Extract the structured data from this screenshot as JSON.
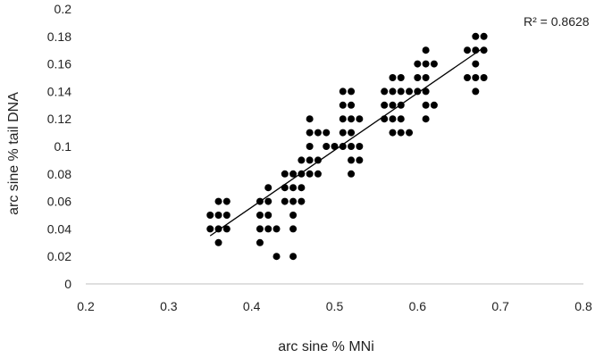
{
  "chart_data": {
    "type": "scatter",
    "xlabel": "arc sine % MNi",
    "ylabel": "arc sine % tail DNA",
    "xlim": [
      0.2,
      0.8
    ],
    "ylim": [
      0,
      0.2
    ],
    "x_ticks": [
      "0.2",
      "0.3",
      "0.4",
      "0.5",
      "0.6",
      "0.7",
      "0.8"
    ],
    "y_ticks": [
      "0",
      "0.02",
      "0.04",
      "0.06",
      "0.08",
      "0.1",
      "0.12",
      "0.14",
      "0.16",
      "0.18",
      "0.2"
    ],
    "grid": false,
    "legend": "none",
    "annotation": "R² = 0.8628",
    "marker_color": "#000000",
    "points": [
      [
        0.35,
        0.05
      ],
      [
        0.35,
        0.04
      ],
      [
        0.36,
        0.06
      ],
      [
        0.36,
        0.05
      ],
      [
        0.36,
        0.04
      ],
      [
        0.36,
        0.03
      ],
      [
        0.37,
        0.06
      ],
      [
        0.37,
        0.05
      ],
      [
        0.37,
        0.04
      ],
      [
        0.41,
        0.06
      ],
      [
        0.41,
        0.05
      ],
      [
        0.41,
        0.04
      ],
      [
        0.41,
        0.03
      ],
      [
        0.42,
        0.07
      ],
      [
        0.42,
        0.06
      ],
      [
        0.42,
        0.05
      ],
      [
        0.42,
        0.04
      ],
      [
        0.43,
        0.04
      ],
      [
        0.43,
        0.02
      ],
      [
        0.44,
        0.08
      ],
      [
        0.44,
        0.07
      ],
      [
        0.44,
        0.06
      ],
      [
        0.45,
        0.08
      ],
      [
        0.45,
        0.07
      ],
      [
        0.45,
        0.06
      ],
      [
        0.45,
        0.05
      ],
      [
        0.45,
        0.04
      ],
      [
        0.45,
        0.02
      ],
      [
        0.46,
        0.09
      ],
      [
        0.46,
        0.08
      ],
      [
        0.46,
        0.07
      ],
      [
        0.46,
        0.06
      ],
      [
        0.47,
        0.12
      ],
      [
        0.47,
        0.11
      ],
      [
        0.47,
        0.1
      ],
      [
        0.47,
        0.09
      ],
      [
        0.47,
        0.08
      ],
      [
        0.48,
        0.11
      ],
      [
        0.48,
        0.09
      ],
      [
        0.48,
        0.08
      ],
      [
        0.49,
        0.11
      ],
      [
        0.49,
        0.1
      ],
      [
        0.5,
        0.1
      ],
      [
        0.51,
        0.14
      ],
      [
        0.51,
        0.13
      ],
      [
        0.51,
        0.12
      ],
      [
        0.51,
        0.11
      ],
      [
        0.51,
        0.1
      ],
      [
        0.52,
        0.14
      ],
      [
        0.52,
        0.13
      ],
      [
        0.52,
        0.12
      ],
      [
        0.52,
        0.11
      ],
      [
        0.52,
        0.1
      ],
      [
        0.52,
        0.09
      ],
      [
        0.52,
        0.08
      ],
      [
        0.53,
        0.12
      ],
      [
        0.53,
        0.1
      ],
      [
        0.53,
        0.09
      ],
      [
        0.56,
        0.14
      ],
      [
        0.56,
        0.13
      ],
      [
        0.56,
        0.12
      ],
      [
        0.57,
        0.15
      ],
      [
        0.57,
        0.14
      ],
      [
        0.57,
        0.13
      ],
      [
        0.57,
        0.12
      ],
      [
        0.57,
        0.11
      ],
      [
        0.58,
        0.15
      ],
      [
        0.58,
        0.14
      ],
      [
        0.58,
        0.13
      ],
      [
        0.58,
        0.12
      ],
      [
        0.58,
        0.11
      ],
      [
        0.59,
        0.14
      ],
      [
        0.59,
        0.11
      ],
      [
        0.6,
        0.16
      ],
      [
        0.6,
        0.15
      ],
      [
        0.6,
        0.14
      ],
      [
        0.61,
        0.17
      ],
      [
        0.61,
        0.16
      ],
      [
        0.61,
        0.15
      ],
      [
        0.61,
        0.14
      ],
      [
        0.61,
        0.13
      ],
      [
        0.61,
        0.12
      ],
      [
        0.62,
        0.16
      ],
      [
        0.62,
        0.13
      ],
      [
        0.66,
        0.17
      ],
      [
        0.66,
        0.15
      ],
      [
        0.67,
        0.18
      ],
      [
        0.67,
        0.17
      ],
      [
        0.67,
        0.16
      ],
      [
        0.67,
        0.15
      ],
      [
        0.67,
        0.14
      ],
      [
        0.68,
        0.18
      ],
      [
        0.68,
        0.17
      ],
      [
        0.68,
        0.15
      ]
    ],
    "trendline": {
      "x": [
        0.35,
        0.68
      ],
      "y": [
        0.035,
        0.172
      ],
      "color": "#000000"
    }
  }
}
